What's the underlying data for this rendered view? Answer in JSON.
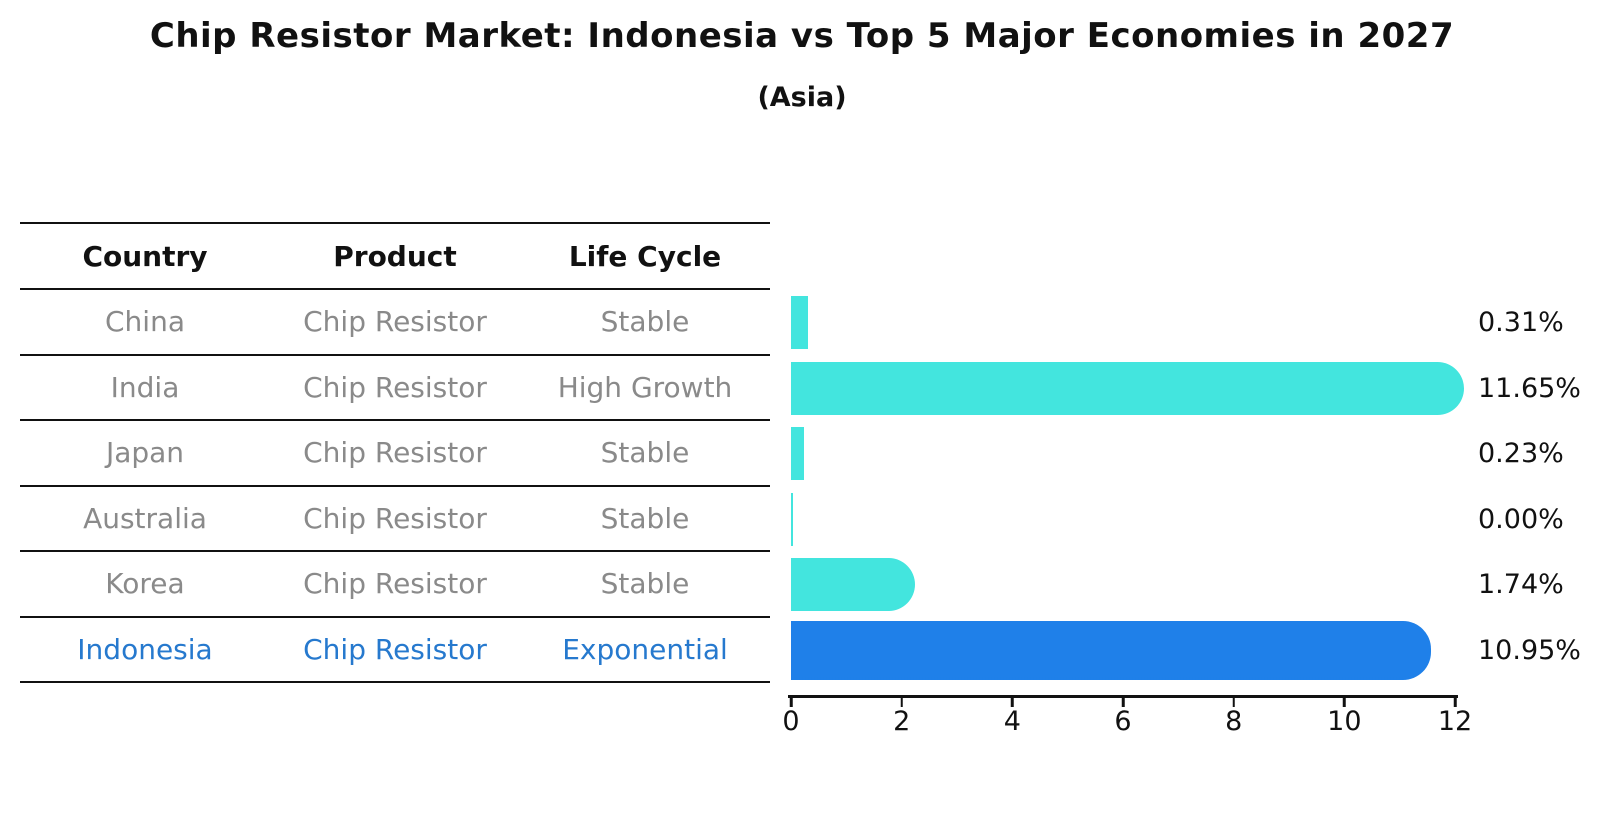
{
  "title": "Chip Resistor Market: Indonesia vs Top 5 Major Economies in 2027",
  "subtitle": "(Asia)",
  "table": {
    "headers": [
      "Country",
      "Product",
      "Life Cycle"
    ],
    "rows": [
      {
        "country": "China",
        "product": "Chip Resistor",
        "life_cycle": "Stable",
        "highlighted": false
      },
      {
        "country": "India",
        "product": "Chip Resistor",
        "life_cycle": "High Growth",
        "highlighted": false
      },
      {
        "country": "Japan",
        "product": "Chip Resistor",
        "life_cycle": "Stable",
        "highlighted": false
      },
      {
        "country": "Australia",
        "product": "Chip Resistor",
        "life_cycle": "Stable",
        "highlighted": false
      },
      {
        "country": "Korea",
        "product": "Chip Resistor",
        "life_cycle": "Stable",
        "highlighted": false
      },
      {
        "country": "Indonesia",
        "product": "Chip Resistor",
        "life_cycle": "Exponential",
        "highlighted": true
      }
    ]
  },
  "chart_data": {
    "type": "bar",
    "orientation": "horizontal",
    "title": "Chip Resistor Market: Indonesia vs Top 5 Major Economies in 2027 (Asia)",
    "categories": [
      "China",
      "India",
      "Japan",
      "Australia",
      "Korea",
      "Indonesia"
    ],
    "values": [
      0.31,
      11.65,
      0.23,
      0.0,
      1.74,
      10.95
    ],
    "value_labels": [
      "0.31%",
      "11.65%",
      "0.23%",
      "0.00%",
      "1.74%",
      "10.95%"
    ],
    "unit": "%",
    "xlim": [
      0,
      12
    ],
    "xticks": [
      "0",
      "2",
      "4",
      "6",
      "8",
      "10",
      "12"
    ],
    "grid": false,
    "legend": false,
    "bar_color": "#43e5de",
    "highlight_index": 5,
    "highlight_bar_color": "#1f80e9",
    "highlight_border_style": "dotted"
  },
  "colors": {
    "background": "#ffffff",
    "text": "#111111",
    "table_text": "#8a8a8a",
    "highlight_text": "#2679ce",
    "rule": "#111111"
  }
}
